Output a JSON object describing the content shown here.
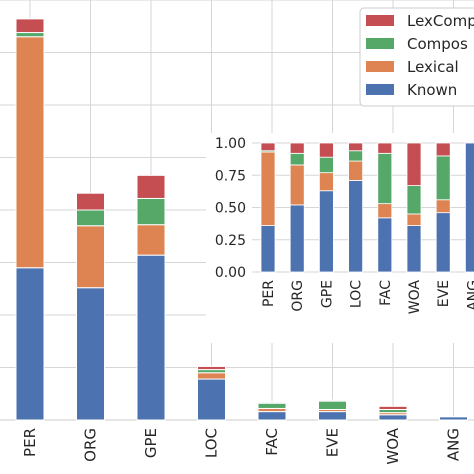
{
  "colors": {
    "Known": "#4c72b0",
    "Lexical": "#dd8452",
    "Compositional": "#55a868",
    "LexComp": "#c44e52",
    "grid": "#d6d6d6",
    "background": "#ffffff"
  },
  "legend": {
    "entries": [
      {
        "label": "LexComp",
        "color_key": "LexComp"
      },
      {
        "label": "Compos",
        "color_key": "Compositional"
      },
      {
        "label": "Lexical",
        "color_key": "Lexical"
      },
      {
        "label": "Known",
        "color_key": "Known"
      }
    ]
  },
  "chart_data": [
    {
      "type": "bar",
      "stacked": true,
      "categories": [
        "PER",
        "ORG",
        "GPE",
        "LOC",
        "FAC",
        "EVE",
        "WOA",
        "ANG"
      ],
      "series": [
        {
          "name": "Known",
          "color_key": "Known",
          "values": [
            145,
            126,
            157,
            39,
            8,
            8,
            5,
            3
          ]
        },
        {
          "name": "Lexical",
          "color_key": "Lexical",
          "values": [
            220,
            59,
            29,
            6,
            3,
            2,
            2,
            0
          ]
        },
        {
          "name": "Compos",
          "color_key": "Compositional",
          "values": [
            4,
            15,
            25,
            3,
            5,
            8,
            3,
            0
          ]
        },
        {
          "name": "LexComp",
          "color_key": "LexComp",
          "values": [
            13,
            16,
            22,
            3,
            1,
            1,
            3,
            0
          ]
        }
      ],
      "ylim": [
        0,
        400
      ],
      "grid": true
    },
    {
      "type": "bar",
      "stacked": true,
      "normalized": true,
      "categories": [
        "PER",
        "ORG",
        "GPE",
        "LOC",
        "FAC",
        "WOA",
        "EVE",
        "ANG"
      ],
      "series": [
        {
          "name": "Known",
          "color_key": "Known",
          "values": [
            0.36,
            0.52,
            0.63,
            0.71,
            0.42,
            0.36,
            0.46,
            1.0
          ]
        },
        {
          "name": "Lexical",
          "color_key": "Lexical",
          "values": [
            0.57,
            0.31,
            0.14,
            0.15,
            0.11,
            0.09,
            0.1,
            0.0
          ]
        },
        {
          "name": "Compos",
          "color_key": "Compositional",
          "values": [
            0.01,
            0.09,
            0.12,
            0.08,
            0.39,
            0.22,
            0.34,
            0.0
          ]
        },
        {
          "name": "LexComp",
          "color_key": "LexComp",
          "values": [
            0.06,
            0.08,
            0.11,
            0.06,
            0.08,
            0.33,
            0.1,
            0.0
          ]
        }
      ],
      "yticks": [
        "0.00",
        "0.25",
        "0.50",
        "0.75",
        "1.00"
      ],
      "ylim": [
        0,
        1
      ],
      "grid": true
    }
  ]
}
